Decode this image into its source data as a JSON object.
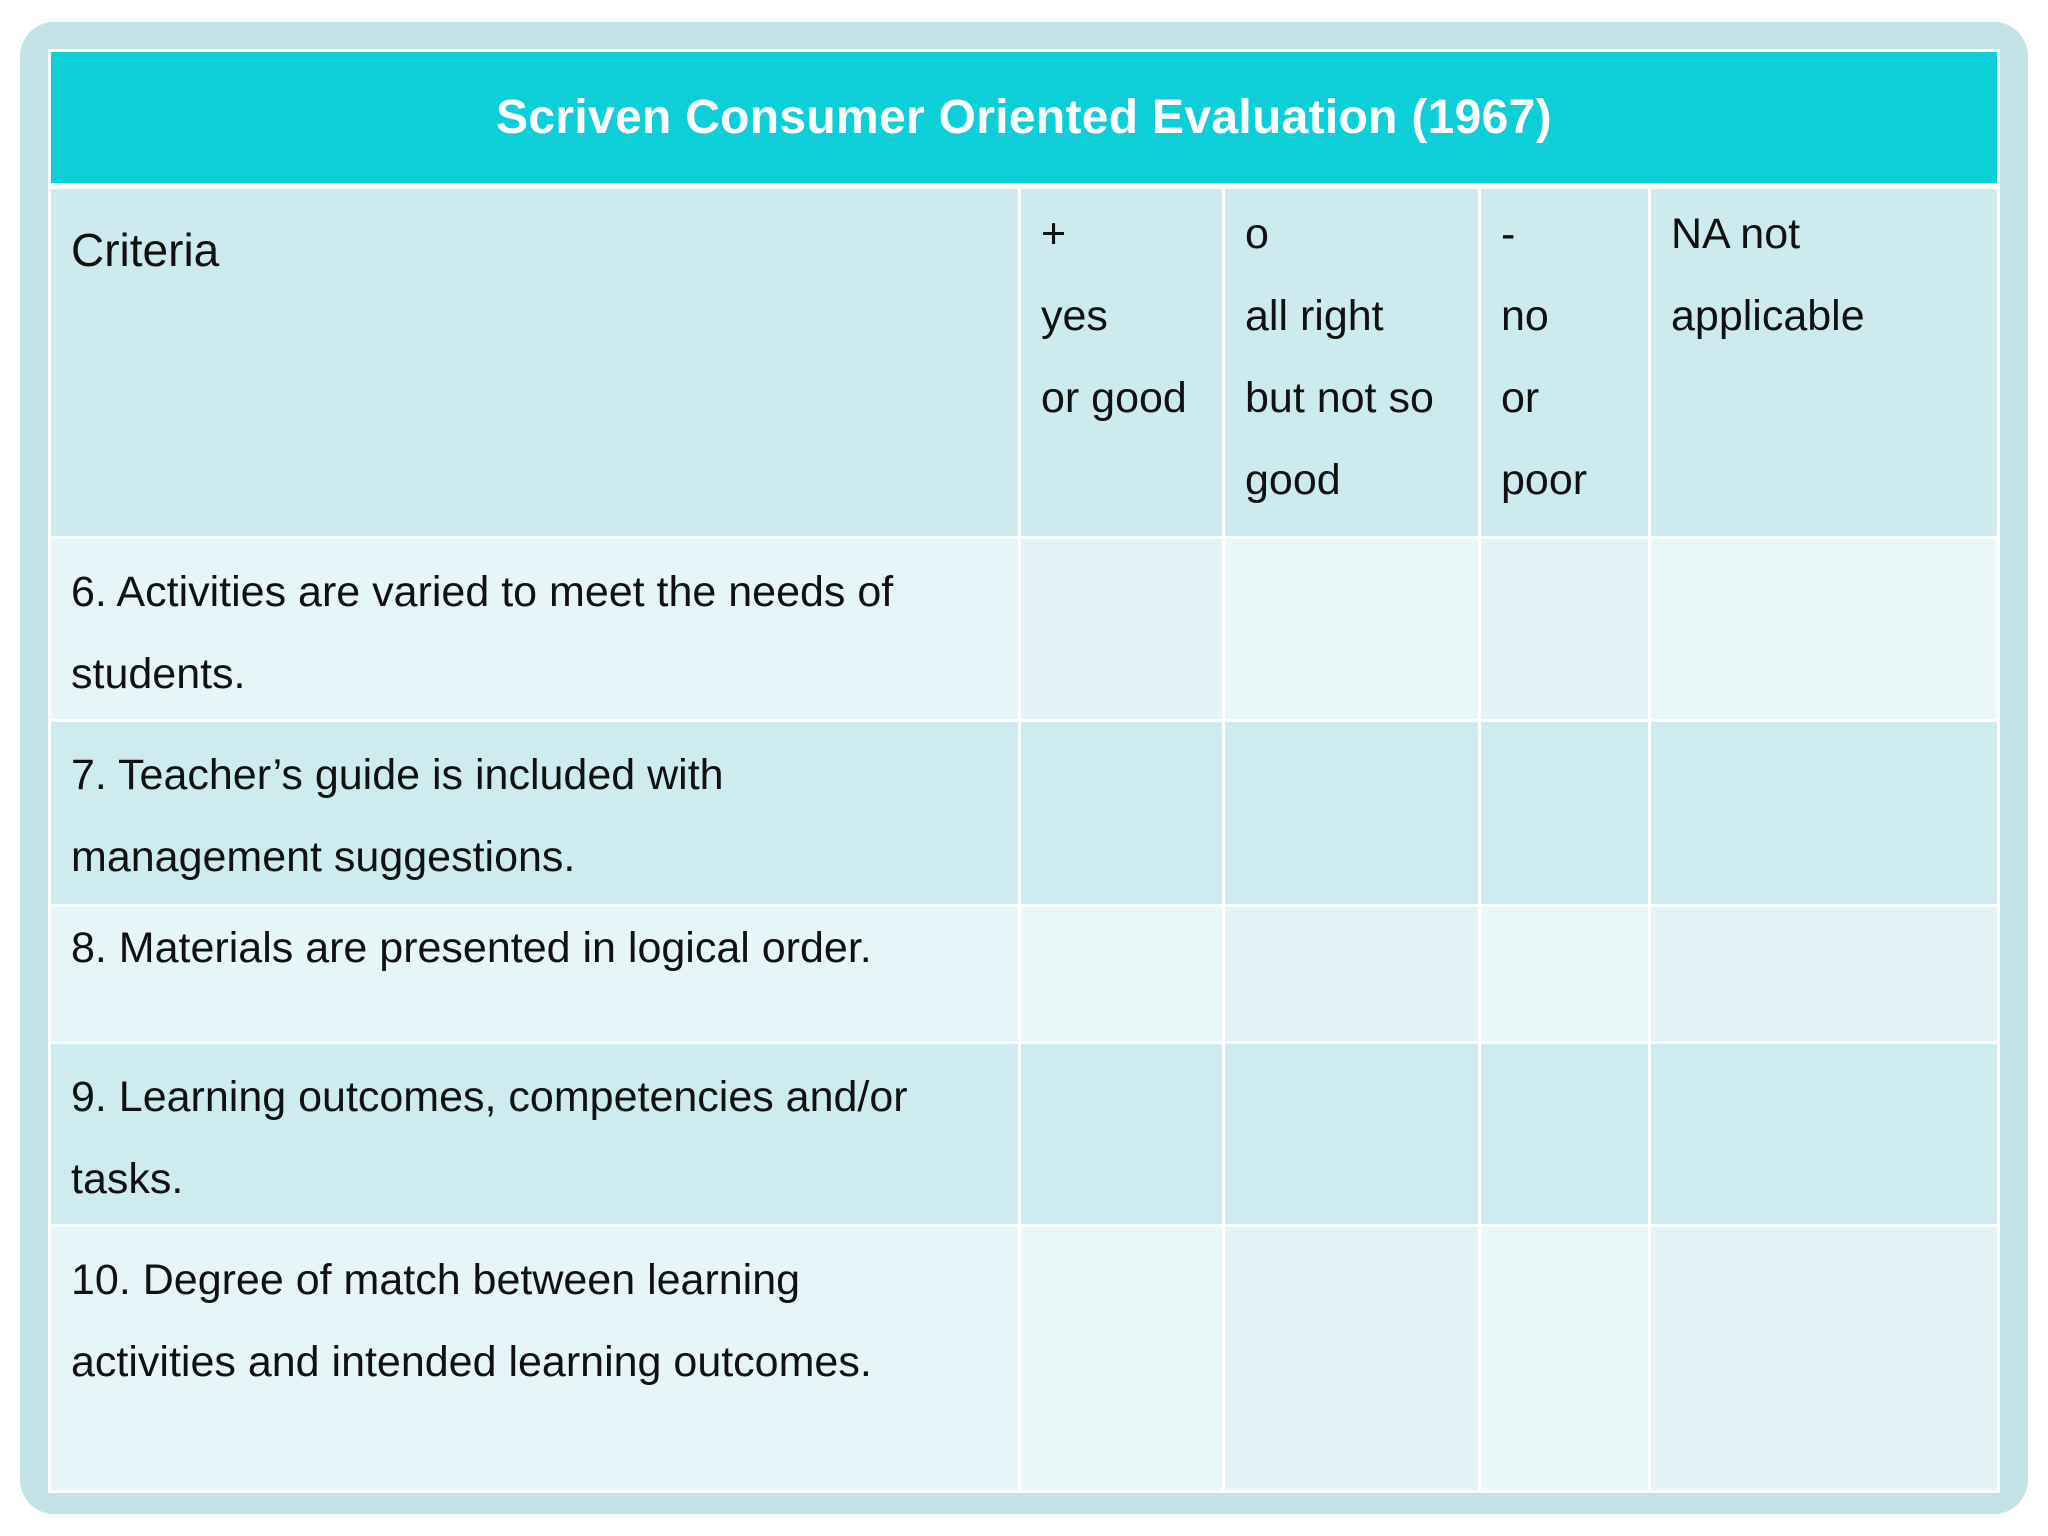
{
  "title": "Scriven Consumer Oriented Evaluation (1967)",
  "header": {
    "criteria": "Criteria",
    "columns": [
      {
        "lines": [
          "+",
          "yes",
          "or good"
        ]
      },
      {
        "lines": [
          "o",
          "all right",
          "but not so",
          "good"
        ]
      },
      {
        "lines": [
          "-",
          "no",
          "or",
          "poor"
        ]
      },
      {
        "lines": [
          "NA not",
          "applicable"
        ]
      }
    ]
  },
  "rows": [
    {
      "criteria_lines": [
        "6. Activities are varied to meet the needs of",
        "students."
      ]
    },
    {
      "criteria_lines": [
        "7. Teacher’s guide is included with",
        "management suggestions."
      ]
    },
    {
      "criteria_lines": [
        "8. Materials are presented in logical order."
      ]
    },
    {
      "criteria_lines": [
        "9. Learning outcomes, competencies and/or",
        "tasks."
      ]
    },
    {
      "criteria_lines": [
        "10. Degree of match between learning",
        "activities and intended learning outcomes."
      ]
    }
  ],
  "colors": {
    "title_bg": "#0ccfd8",
    "frame": "#c3e2e6",
    "header_bg": "#cdebee",
    "row_light": "#e6f5f7",
    "row_dark": "#ceecef"
  }
}
